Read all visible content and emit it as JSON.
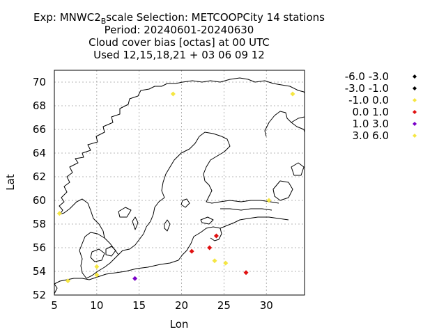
{
  "title": {
    "line1_prefix": "Exp: MNWC2",
    "line1_sub": "B",
    "line1_rest": "scale   Selection: METCOOPCity     14 stations",
    "line2": "Period: 20240601-20240630",
    "line3": "Cloud cover bias [octas] at  00 UTC",
    "line4": "Used 12,15,18,21 + 03 06 09 12"
  },
  "chart_data": {
    "type": "scatter",
    "xlabel": "Lon",
    "ylabel": "Lat",
    "xlim": [
      5,
      34.5
    ],
    "ylim": [
      52,
      71
    ],
    "x_ticks": [
      "5",
      "10",
      "15",
      "20",
      "25",
      "30"
    ],
    "y_ticks": [
      "52",
      "54",
      "56",
      "58",
      "60",
      "62",
      "64",
      "66",
      "68",
      "70"
    ],
    "grid": true,
    "legend_placement": "right",
    "legend": [
      {
        "label": "-6.0 -3.0",
        "color": "#000000"
      },
      {
        "label": "-3.0 -1.0",
        "color": "#000000"
      },
      {
        "label": "-1.0 0.0",
        "color": "#f5e642"
      },
      {
        "label": "0.0 1.0",
        "color": "#e01010"
      },
      {
        "label": "1.0 3.0",
        "color": "#7a00c8"
      },
      {
        "label": "3.0 6.0",
        "color": "#f5e642"
      }
    ],
    "points": [
      {
        "lon": 33.1,
        "lat": 69.0,
        "class": "-1.0 0.0"
      },
      {
        "lon": 30.3,
        "lat": 60.0,
        "class": "-1.0 0.0"
      },
      {
        "lon": 5.6,
        "lat": 58.9,
        "class": "-1.0 0.0"
      },
      {
        "lon": 24.1,
        "lat": 57.0,
        "class": "0.0 1.0"
      },
      {
        "lon": 23.3,
        "lat": 56.0,
        "class": "0.0 1.0"
      },
      {
        "lon": 21.2,
        "lat": 55.7,
        "class": "0.0 1.0"
      },
      {
        "lon": 23.9,
        "lat": 54.9,
        "class": "-1.0 0.0"
      },
      {
        "lon": 25.2,
        "lat": 54.7,
        "class": "-1.0 0.0"
      },
      {
        "lon": 27.6,
        "lat": 53.9,
        "class": "0.0 1.0"
      },
      {
        "lon": 10.0,
        "lat": 54.4,
        "class": "-1.0 0.0"
      },
      {
        "lon": 10.0,
        "lat": 53.7,
        "class": "-1.0 0.0"
      },
      {
        "lon": 14.5,
        "lat": 53.4,
        "class": "1.0 3.0"
      },
      {
        "lon": 6.6,
        "lat": 53.2,
        "class": "-1.0 0.0"
      },
      {
        "lon": 19.0,
        "lat": 69.0,
        "class": "-1.0 0.0"
      }
    ]
  }
}
